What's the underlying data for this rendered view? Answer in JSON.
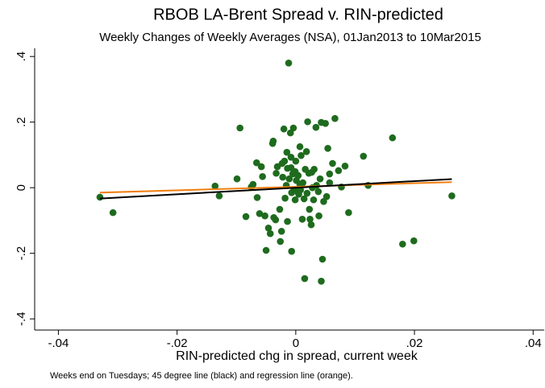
{
  "chart_data": {
    "type": "scatter",
    "title": "RBOB LA-Brent Spread v. RIN-predicted",
    "subtitle": "Weekly Changes of Weekly Averages (NSA), 01Jan2013 to 10Mar2015",
    "x_label": "RIN-predicted chg in spread, current week",
    "note": "Weeks end on Tuesdays; 45 degree line (black) and regression line (orange).",
    "xlim": [
      -0.044,
      0.042
    ],
    "ylim": [
      -0.434,
      0.425
    ],
    "xticks": [
      {
        "value": -0.04,
        "label": "-.04"
      },
      {
        "value": -0.02,
        "label": "-.02"
      },
      0,
      {
        "value": 0.02,
        "label": ".02"
      },
      {
        "value": 0.04,
        "label": ".04"
      }
    ],
    "yticks": [
      {
        "value": -0.4,
        "label": "-.4"
      },
      {
        "value": -0.2,
        "label": "-.2"
      },
      0,
      {
        "value": 0.2,
        "label": ".2"
      },
      {
        "value": 0.4,
        "label": ".4"
      }
    ],
    "grid": false,
    "series": [
      {
        "color": "#1e6b1e",
        "x": [
          -0.033,
          -0.0308,
          -0.0136,
          -0.0129,
          -0.0099,
          -0.0094,
          -0.0084,
          -0.0075,
          -0.0072,
          -0.0066,
          -0.0065,
          -0.0061,
          -0.0058,
          -0.0056,
          -0.0052,
          -0.005,
          -0.0046,
          -0.0043,
          -0.0039,
          -0.0038,
          -0.0037,
          -0.0034,
          -0.0033,
          -0.0031,
          -0.0027,
          -0.0026,
          -0.0024,
          -0.0023,
          -0.0022,
          -0.002,
          -0.0019,
          -0.0018,
          -0.0016,
          -0.0015,
          -0.0014,
          -0.0014,
          -0.0012,
          -0.0011,
          -0.0009,
          -0.0008,
          -0.0008,
          -0.0007,
          -0.0007,
          -0.0005,
          -0.0004,
          -0.0003,
          -0.0001,
          -0.0001,
          0,
          0.0001,
          0.0003,
          0.0004,
          0.0005,
          0.0007,
          0.0007,
          0.0008,
          0.0009,
          0.0011,
          0.0012,
          0.0014,
          0.0015,
          0.0016,
          0.0018,
          0.0019,
          0.002,
          0.0022,
          0.0023,
          0.0024,
          0.0026,
          0.0027,
          0.0028,
          0.003,
          0.0031,
          0.0034,
          0.0035,
          0.0038,
          0.0039,
          0.0041,
          0.0043,
          0.0043,
          0.0045,
          0.0047,
          0.005,
          0.0052,
          0.0054,
          0.0057,
          0.0057,
          0.0062,
          0.0066,
          0.0072,
          0.0077,
          0.0083,
          0.0089,
          0.0114,
          0.0122,
          0.0163,
          0.018,
          0.0199,
          0.0263
        ],
        "y": [
          -0.029,
          -0.076,
          0.005,
          -0.025,
          0.027,
          0.182,
          -0.088,
          0.002,
          0.01,
          0.076,
          -0.03,
          -0.079,
          0.064,
          0.034,
          -0.086,
          -0.191,
          -0.123,
          -0.14,
          0.135,
          0.142,
          -0.091,
          -0.098,
          0.044,
          0.064,
          -0.066,
          -0.164,
          -0.133,
          0.074,
          0.032,
          0.179,
          0.081,
          -0.032,
          0.007,
          0.108,
          0.059,
          -0.103,
          0.38,
          0.027,
          0.167,
          0.093,
          0.061,
          -0.015,
          -0.194,
          0.042,
          0.182,
          -0.007,
          0.049,
          -0.037,
          0.081,
          0.022,
          -0.012,
          0.037,
          -0.02,
          0.125,
          0.01,
          -0.007,
          0.098,
          -0.096,
          0.015,
          -0.034,
          -0.277,
          0.056,
          0.11,
          -0.017,
          0.201,
          0.044,
          -0.066,
          -0.096,
          -0.113,
          0.047,
          0,
          -0.037,
          0.056,
          0.184,
          0.007,
          -0.012,
          -0.086,
          0.027,
          0.199,
          -0.285,
          -0.218,
          -0.042,
          0.196,
          -0.027,
          0.12,
          0.042,
          0.015,
          0.074,
          0.211,
          0.052,
          0.002,
          0.066,
          -0.076,
          0.096,
          0.007,
          0.152,
          -0.172,
          -0.162,
          -0.025
        ]
      }
    ],
    "lines": [
      {
        "color": "#f07f10",
        "x": [
          -0.033,
          0.0263
        ],
        "y": [
          -0.015,
          0.017
        ]
      },
      {
        "color": "#000000",
        "x": [
          -0.033,
          0.0263
        ],
        "y": [
          -0.033,
          0.0263
        ]
      }
    ]
  }
}
